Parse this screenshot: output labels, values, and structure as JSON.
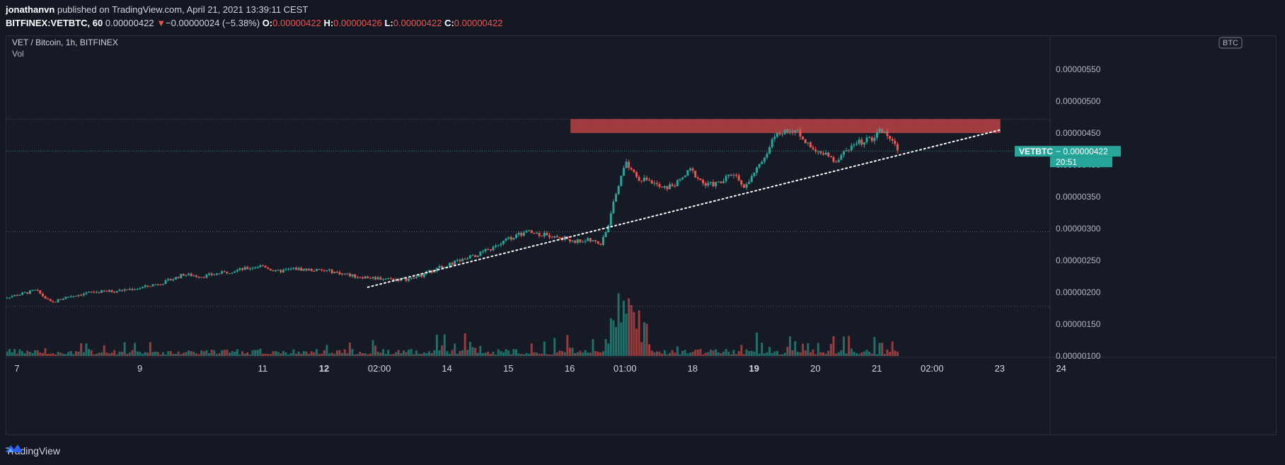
{
  "header": {
    "author": "jonathanvn",
    "published_text": "published on TradingView.com, April 21, 2021 13:39:11 CEST",
    "symbol": "BITFINEX:VETBTC, 60",
    "last": "0.00000422",
    "change_arrow": "▼",
    "change": "−0.00000024 (−5.38%)",
    "o_label": "O:",
    "o_value": "0.00000422",
    "h_label": "H:",
    "h_value": "0.00000426",
    "l_label": "L:",
    "l_value": "0.00000422",
    "c_label": "C:",
    "c_value": "0.00000422"
  },
  "legend": {
    "title": "VET / Bitcoin, 1h, BITFINEX",
    "vol_label": "Vol"
  },
  "footer": {
    "brand": "TradingView",
    "logo_icon": "tradingview-logo-icon"
  },
  "colors": {
    "up": "#26a69a",
    "down": "#ef5350",
    "resistance": "#b84345",
    "price_tag": "#26a69a",
    "trendline": "#ffffff"
  },
  "chart_data": {
    "type": "candlestick",
    "symbol": "VETBTC",
    "currency": "BTC",
    "current_price_label": "VETBTC",
    "current_price": "0.00000422",
    "countdown": "20:51",
    "y_ticks": [
      "0.00000550",
      "0.00000500",
      "0.00000450",
      "0.00000400",
      "0.00000350",
      "0.00000300",
      "0.00000250",
      "0.00000200",
      "0.00000150",
      "0.00000100"
    ],
    "y_tick_values": [
      5.5e-06,
      5e-06,
      4.5e-06,
      4e-06,
      3.5e-06,
      3e-06,
      2.5e-06,
      2e-06,
      1.5e-06,
      1e-06
    ],
    "x_ticks": [
      {
        "label": "7",
        "t": 0.0,
        "bold": false
      },
      {
        "label": "9",
        "t": 2.0,
        "bold": false
      },
      {
        "label": "11",
        "t": 4.0,
        "bold": false
      },
      {
        "label": "12",
        "t": 5.0,
        "bold": true
      },
      {
        "label": "02:00",
        "t": 5.9,
        "bold": false
      },
      {
        "label": "14",
        "t": 7.0,
        "bold": false
      },
      {
        "label": "15",
        "t": 8.0,
        "bold": false
      },
      {
        "label": "16",
        "t": 9.0,
        "bold": false
      },
      {
        "label": "01:00",
        "t": 9.9,
        "bold": false
      },
      {
        "label": "18",
        "t": 11.0,
        "bold": false
      },
      {
        "label": "19",
        "t": 12.0,
        "bold": true
      },
      {
        "label": "20",
        "t": 13.0,
        "bold": false
      },
      {
        "label": "21",
        "t": 14.0,
        "bold": false
      },
      {
        "label": "02:00",
        "t": 14.9,
        "bold": false
      },
      {
        "label": "23",
        "t": 16.0,
        "bold": false
      },
      {
        "label": "24",
        "t": 17.0,
        "bold": false
      }
    ],
    "price_series": [
      [
        -0.3,
        1.9e-06
      ],
      [
        0.0,
        1.96e-06
      ],
      [
        0.3,
        2.03e-06
      ],
      [
        0.55,
        1.83e-06
      ],
      [
        0.8,
        1.93e-06
      ],
      [
        1.2,
        2e-06
      ],
      [
        1.6,
        2.02e-06
      ],
      [
        2.0,
        2.07e-06
      ],
      [
        2.4,
        2.16e-06
      ],
      [
        2.7,
        2.28e-06
      ],
      [
        3.0,
        2.25e-06
      ],
      [
        3.3,
        2.3e-06
      ],
      [
        3.7,
        2.37e-06
      ],
      [
        4.0,
        2.42e-06
      ],
      [
        4.2,
        2.32e-06
      ],
      [
        4.5,
        2.37e-06
      ],
      [
        4.8,
        2.35e-06
      ],
      [
        5.1,
        2.33e-06
      ],
      [
        5.5,
        2.25e-06
      ],
      [
        5.9,
        2.22e-06
      ],
      [
        6.2,
        2.2e-06
      ],
      [
        6.4,
        2.21e-06
      ],
      [
        6.6,
        2.28e-06
      ],
      [
        6.9,
        2.4e-06
      ],
      [
        7.2,
        2.5e-06
      ],
      [
        7.5,
        2.6e-06
      ],
      [
        7.8,
        2.72e-06
      ],
      [
        8.0,
        2.85e-06
      ],
      [
        8.3,
        2.95e-06
      ],
      [
        8.6,
        2.9e-06
      ],
      [
        8.9,
        2.85e-06
      ],
      [
        9.1,
        2.8e-06
      ],
      [
        9.3,
        2.82e-06
      ],
      [
        9.5,
        2.75e-06
      ],
      [
        9.6,
        3e-06
      ],
      [
        9.75,
        3.6e-06
      ],
      [
        9.9,
        4.05e-06
      ],
      [
        10.1,
        3.8e-06
      ],
      [
        10.3,
        3.75e-06
      ],
      [
        10.5,
        3.62e-06
      ],
      [
        10.75,
        3.72e-06
      ],
      [
        10.95,
        3.92e-06
      ],
      [
        11.2,
        3.68e-06
      ],
      [
        11.45,
        3.72e-06
      ],
      [
        11.65,
        3.88e-06
      ],
      [
        11.85,
        3.65e-06
      ],
      [
        12.05,
        3.95e-06
      ],
      [
        12.25,
        4.3e-06
      ],
      [
        12.35,
        4.55e-06
      ],
      [
        12.5,
        4.5e-06
      ],
      [
        12.7,
        4.55e-06
      ],
      [
        12.9,
        4.3e-06
      ],
      [
        13.1,
        4.2e-06
      ],
      [
        13.3,
        4.05e-06
      ],
      [
        13.5,
        4.25e-06
      ],
      [
        13.7,
        4.35e-06
      ],
      [
        13.9,
        4.4e-06
      ],
      [
        14.0,
        4.55e-06
      ],
      [
        14.2,
        4.45e-06
      ],
      [
        14.35,
        4.22e-06
      ]
    ],
    "resistance_zone": {
      "t_start": 9.0,
      "t_end": 16.0,
      "low": 4.5e-06,
      "high": 4.72e-06
    },
    "trendline": {
      "t_start": 5.7,
      "p_start": 2.08e-06,
      "t_end": 16.0,
      "p_end": 4.55e-06
    },
    "volume_peak_t": 9.9
  }
}
